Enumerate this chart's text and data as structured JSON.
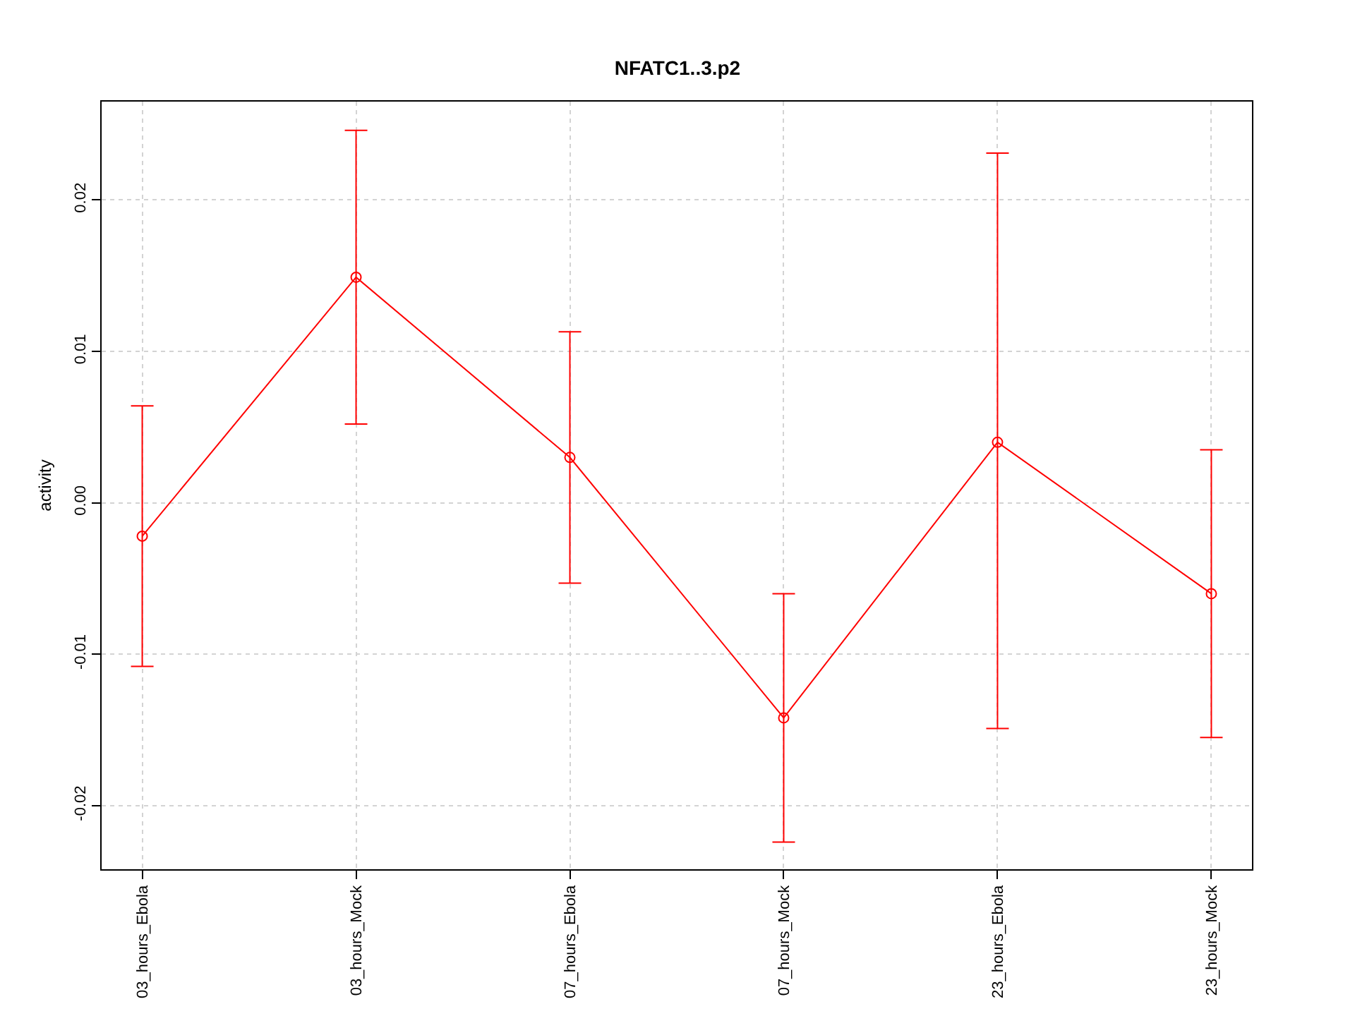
{
  "chart_data": {
    "type": "line",
    "title": "NFATC1..3.p2",
    "ylabel": "activity",
    "categories": [
      "03_hours_Ebola",
      "03_hours_Mock",
      "07_hours_Ebola",
      "07_hours_Mock",
      "23_hours_Ebola",
      "23_hours_Mock"
    ],
    "series": [
      {
        "color": "#ff0000",
        "values": [
          -0.0022,
          0.0149,
          0.003,
          -0.0142,
          0.004,
          -0.006
        ],
        "errors": [
          [
            -0.0108,
            0.0064
          ],
          [
            0.0052,
            0.0246
          ],
          [
            -0.0053,
            0.0113
          ],
          [
            -0.0224,
            -0.006
          ],
          [
            -0.0149,
            0.0231
          ],
          [
            -0.0155,
            0.0035
          ]
        ]
      }
    ],
    "ylim": [
      -0.0242,
      0.0265
    ],
    "yticks": [
      {
        "value": -0.02,
        "label": "-0.02"
      },
      {
        "value": -0.01,
        "label": "-0.01"
      },
      {
        "value": 0,
        "label": "0.00"
      },
      {
        "value": 0.01,
        "label": "0.01"
      },
      {
        "value": 0.02,
        "label": "0.02"
      }
    ],
    "grid": true,
    "marker": "circle",
    "line_style": "solid"
  }
}
